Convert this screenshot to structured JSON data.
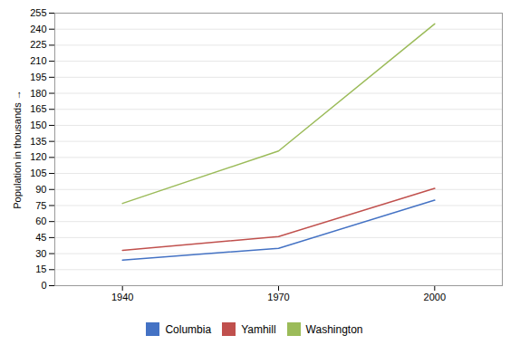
{
  "chart_data": {
    "type": "line",
    "x": [
      1940,
      1970,
      2000
    ],
    "series": [
      {
        "name": "Columbia",
        "color": "#4472C4",
        "values": [
          24,
          35,
          80
        ]
      },
      {
        "name": "Yamhill",
        "color": "#C0504D",
        "values": [
          33,
          46,
          91
        ]
      },
      {
        "name": "Washington",
        "color": "#9BBB59",
        "values": [
          77,
          126,
          245
        ]
      }
    ],
    "ylabel": "Population in thousands",
    "xlim": [
      1927,
      2013
    ],
    "xticks": [
      1940,
      1970,
      2000
    ],
    "ylim": [
      0,
      255
    ],
    "yticks": [
      0,
      15,
      30,
      45,
      60,
      75,
      90,
      105,
      120,
      135,
      150,
      165,
      180,
      195,
      210,
      225,
      240,
      255
    ],
    "grid": true,
    "legend": "bottom"
  }
}
